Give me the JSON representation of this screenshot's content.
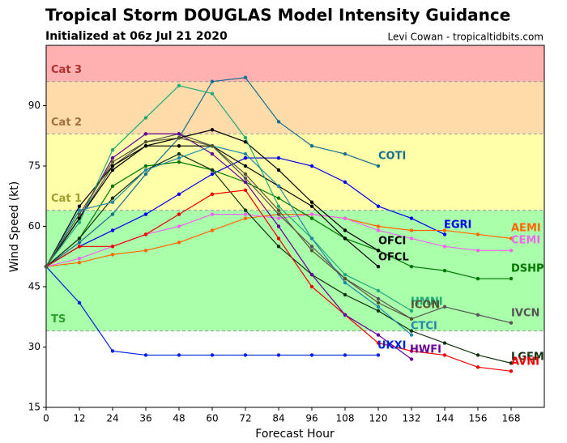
{
  "chart_data": {
    "type": "line",
    "title": "Tropical Storm DOUGLAS Model Intensity Guidance",
    "subtitle": "Initialized at 06z Jul 21 2020",
    "credit": "Levi Cowan - tropicaltidbits.com",
    "x_label": "Forecast Hour",
    "y_label": "Wind Speed (kt)",
    "x": [
      0,
      12,
      24,
      36,
      48,
      60,
      72,
      84,
      96,
      108,
      120,
      132,
      144,
      156,
      168
    ],
    "xlim": [
      0,
      180
    ],
    "ylim": [
      15,
      105
    ],
    "xticks": [
      0,
      12,
      24,
      36,
      48,
      60,
      72,
      84,
      96,
      108,
      120,
      132,
      144,
      156,
      168
    ],
    "yticks": [
      15,
      30,
      45,
      60,
      75,
      90
    ],
    "bands": [
      {
        "name": "TS",
        "from": 34,
        "to": 64,
        "color": "#aaffaa",
        "text_color": "#2ca02c"
      },
      {
        "name": "Cat 1",
        "from": 64,
        "to": 83,
        "color": "#ffffaa",
        "text_color": "#a0a030"
      },
      {
        "name": "Cat 2",
        "from": 83,
        "to": 96,
        "color": "#ffdcaa",
        "text_color": "#a07040"
      },
      {
        "name": "Cat 3",
        "from": 96,
        "to": 105,
        "color": "#ffb0b0",
        "text_color": "#b03030"
      }
    ],
    "series": [
      {
        "name": "COTI",
        "color": "#1a6e8e",
        "values": [
          50,
          56,
          63,
          73,
          82,
          96,
          97,
          86,
          80,
          78,
          75,
          null,
          null,
          null,
          null
        ]
      },
      {
        "name": "EGRI",
        "color": "#0000ee",
        "values": [
          50,
          55,
          59,
          63,
          68,
          73,
          77,
          77,
          75,
          71,
          65,
          62,
          58,
          null,
          null
        ]
      },
      {
        "name": "AEMI",
        "color": "#ff6600",
        "values": [
          50,
          51,
          53,
          54,
          56,
          59,
          62,
          63,
          63,
          62,
          60,
          59,
          59,
          58,
          57
        ]
      },
      {
        "name": "CEMI",
        "color": "#ee66ee",
        "values": [
          50,
          52,
          55,
          58,
          60,
          63,
          63,
          62,
          63,
          62,
          59,
          57,
          55,
          54,
          54
        ]
      },
      {
        "name": "DSHP",
        "color": "#007700",
        "values": [
          50,
          57,
          70,
          75,
          76,
          74,
          71,
          67,
          62,
          57,
          54,
          50,
          49,
          47,
          47
        ]
      },
      {
        "name": "IVCN",
        "color": "#555555",
        "values": [
          50,
          62,
          75,
          81,
          83,
          80,
          72,
          63,
          55,
          47,
          42,
          37,
          40,
          38,
          36
        ]
      },
      {
        "name": "LGEM",
        "color": "#113311",
        "values": [
          50,
          57,
          67,
          74,
          78,
          74,
          64,
          55,
          48,
          43,
          39,
          34,
          31,
          28,
          26
        ]
      },
      {
        "name": "AVNI",
        "color": "#ee0000",
        "values": [
          50,
          55,
          55,
          58,
          63,
          68,
          69,
          57,
          45,
          38,
          31,
          29,
          28,
          25,
          24
        ]
      },
      {
        "name": "HWFI",
        "color": "#660099",
        "values": [
          50,
          62,
          77,
          83,
          83,
          78,
          71,
          60,
          48,
          38,
          33,
          27,
          null,
          null,
          null
        ]
      },
      {
        "name": "UKXI",
        "color": "#0022dd",
        "values": [
          50,
          41,
          29,
          28,
          28,
          28,
          28,
          28,
          28,
          28,
          28,
          null,
          null,
          null,
          null
        ]
      },
      {
        "name": "OFCI",
        "color": "#000000",
        "values": [
          50,
          62,
          74,
          80,
          82,
          84,
          81,
          74,
          66,
          59,
          54,
          null,
          null,
          null,
          null
        ]
      },
      {
        "name": "OFCL",
        "color": "#000000",
        "values": [
          50,
          65,
          75,
          80,
          80,
          80,
          75,
          70,
          65,
          57,
          50,
          null,
          null,
          null,
          null
        ]
      },
      {
        "name": "HMNI",
        "color": "#22aa77",
        "values": [
          50,
          61,
          79,
          87,
          95,
          93,
          82,
          65,
          57,
          48,
          44,
          39,
          null,
          null,
          null
        ]
      },
      {
        "name": "CTCI",
        "color": "#2288aa",
        "values": [
          50,
          64,
          66,
          74,
          77,
          80,
          78,
          70,
          57,
          46,
          40,
          33,
          null,
          null,
          null
        ]
      },
      {
        "name": "ICON",
        "color": "#555533",
        "values": [
          50,
          63,
          76,
          81,
          82,
          80,
          73,
          64,
          54,
          47,
          41,
          37,
          null,
          null,
          null
        ]
      }
    ]
  }
}
